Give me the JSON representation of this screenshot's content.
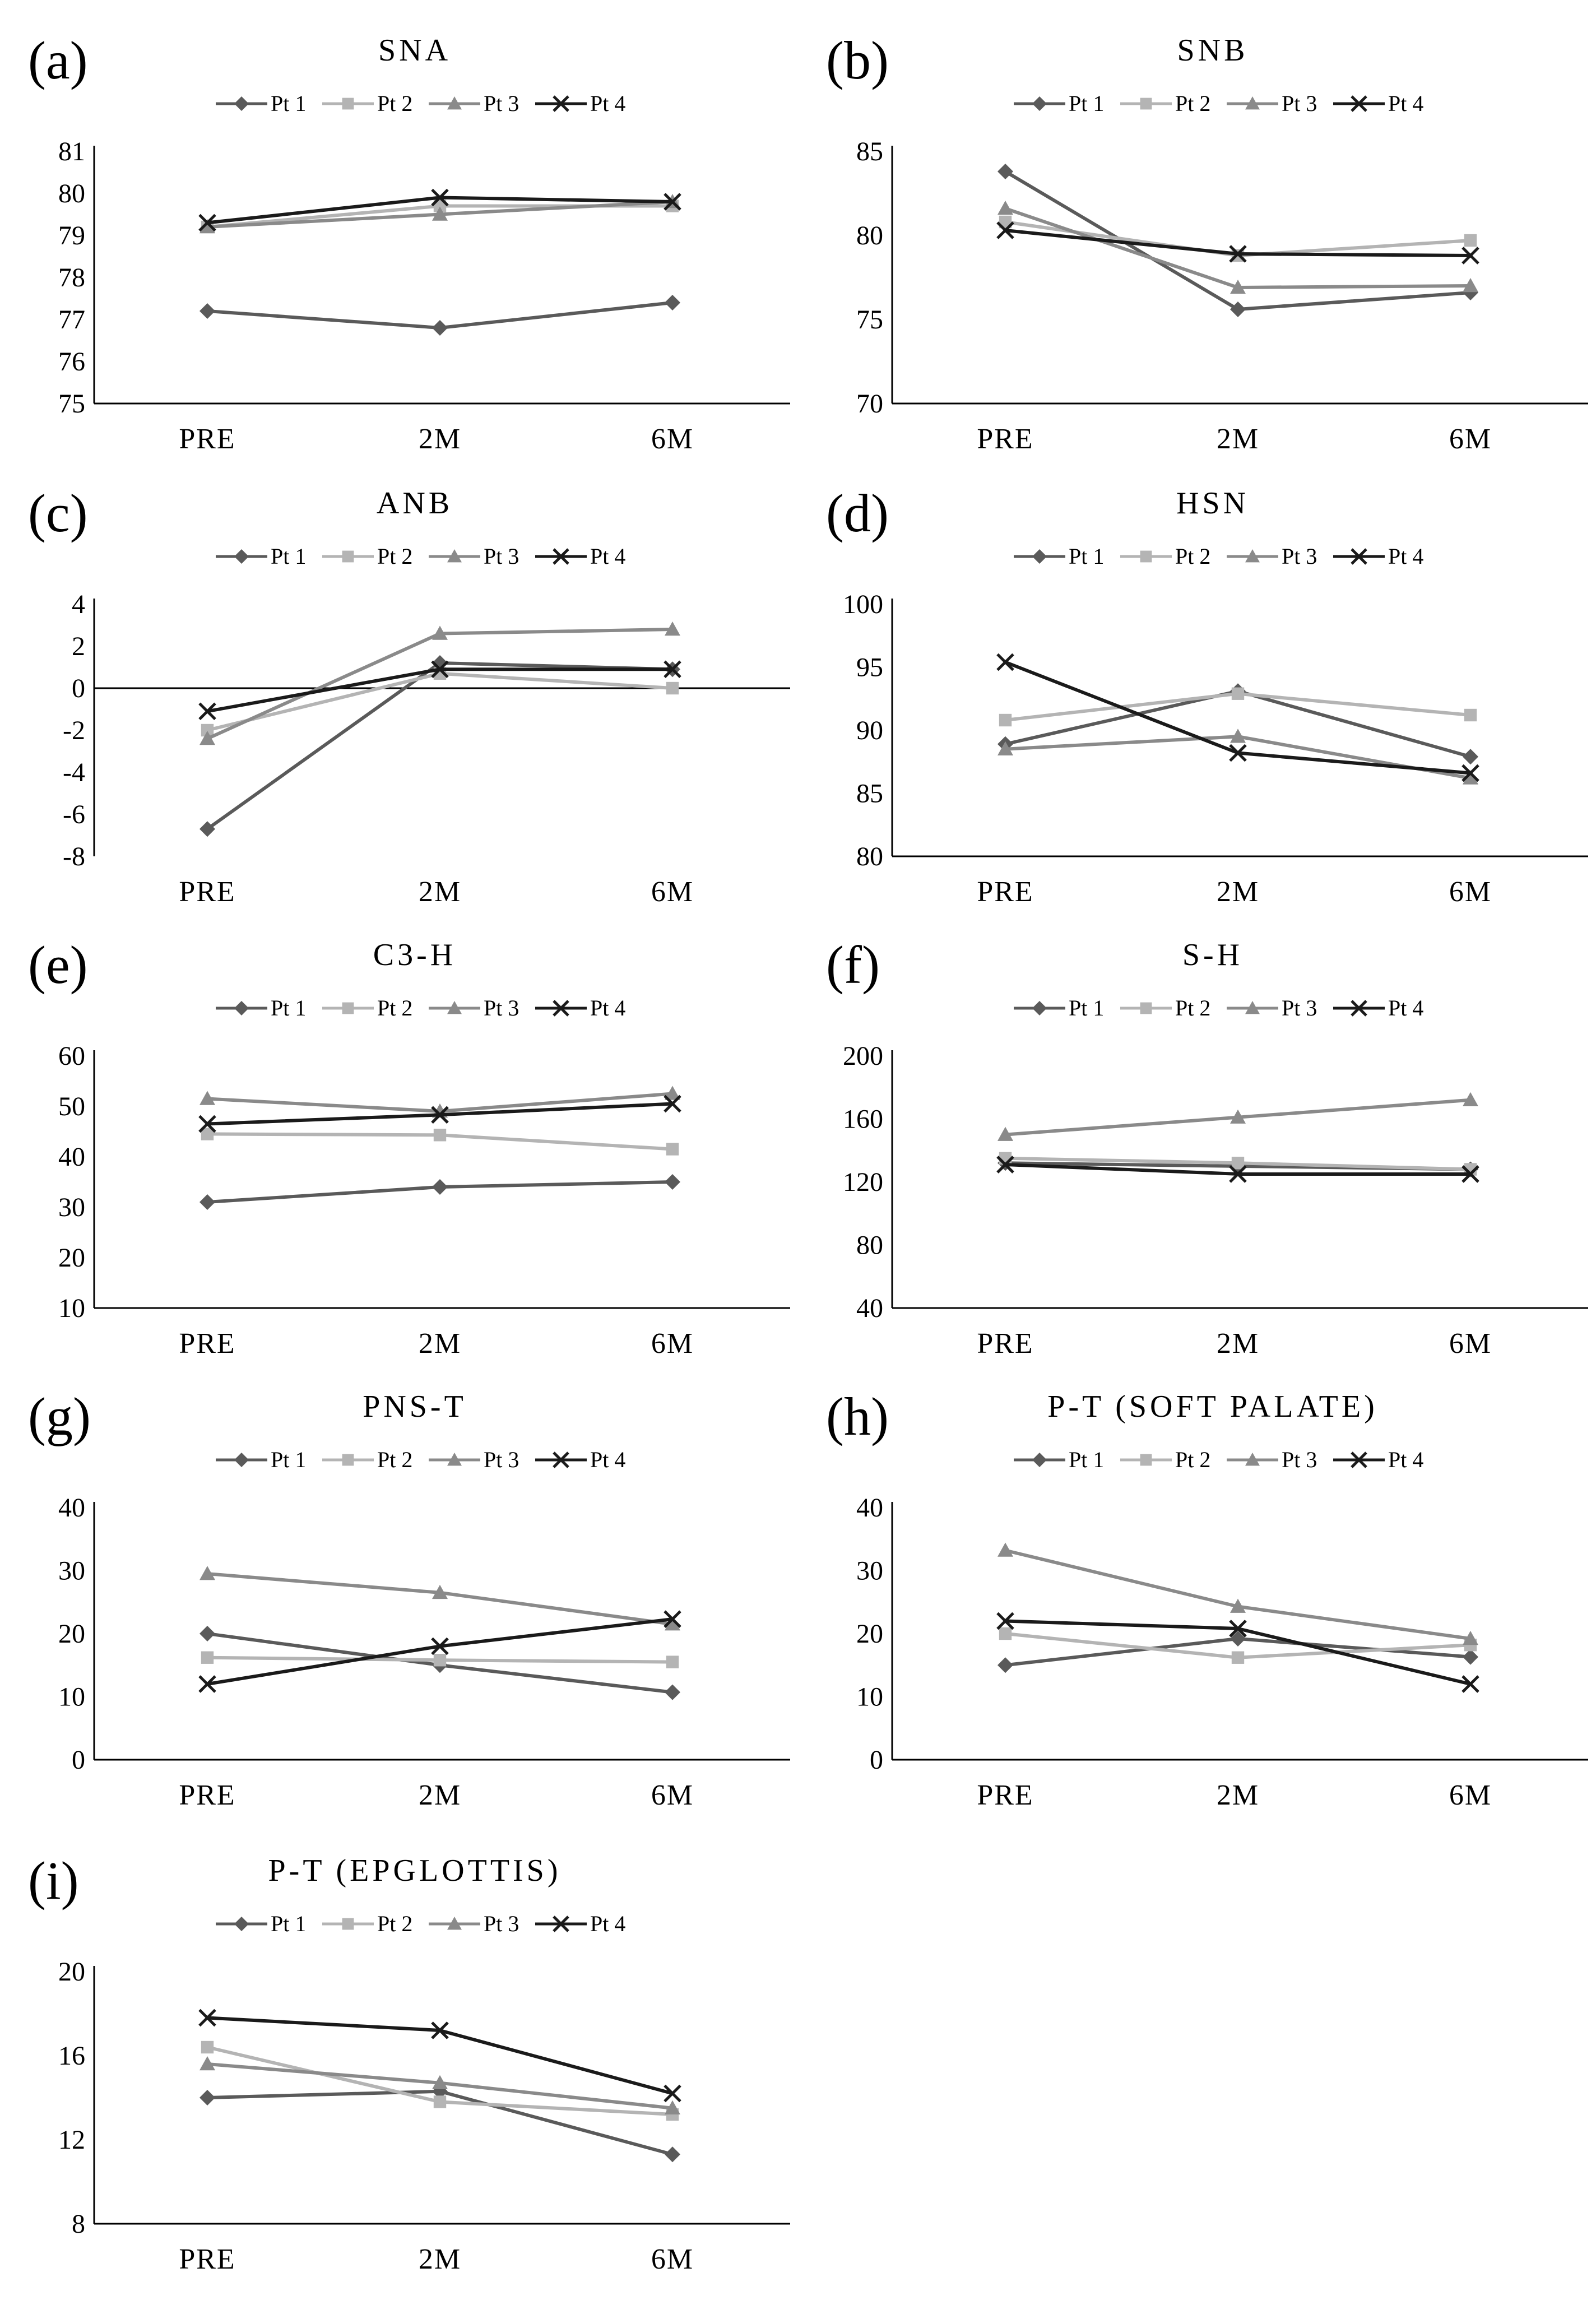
{
  "figure": {
    "legend_labels": [
      "Pt 1",
      "Pt 2",
      "Pt 3",
      "Pt 4"
    ],
    "series_colors": [
      "#5a5a5a",
      "#b4b4b4",
      "#8a8a8a",
      "#1a1a1a"
    ],
    "series_markers": [
      "diamond",
      "square",
      "triangle",
      "cross"
    ]
  },
  "chart_data": [
    {
      "type": "line",
      "letter": "(a)",
      "title": "SNA",
      "categories": [
        "PRE",
        "2M",
        "6M"
      ],
      "yticks": [
        75,
        76,
        77,
        78,
        79,
        80,
        81
      ],
      "ylim": [
        75,
        81
      ],
      "zero_line": false,
      "series": [
        {
          "name": "Pt 1",
          "values": [
            77.2,
            76.8,
            77.4
          ]
        },
        {
          "name": "Pt 2",
          "values": [
            79.2,
            79.7,
            79.7
          ]
        },
        {
          "name": "Pt 3",
          "values": [
            79.2,
            79.5,
            79.8
          ]
        },
        {
          "name": "Pt 4",
          "values": [
            79.3,
            79.9,
            79.8
          ]
        }
      ]
    },
    {
      "type": "line",
      "letter": "(b)",
      "title": "SNB",
      "categories": [
        "PRE",
        "2M",
        "6M"
      ],
      "yticks": [
        70,
        75,
        80,
        85
      ],
      "ylim": [
        70,
        85
      ],
      "zero_line": false,
      "series": [
        {
          "name": "Pt 1",
          "values": [
            83.8,
            75.6,
            76.6
          ]
        },
        {
          "name": "Pt 2",
          "values": [
            80.8,
            78.8,
            79.7
          ]
        },
        {
          "name": "Pt 3",
          "values": [
            81.6,
            76.9,
            77.0
          ]
        },
        {
          "name": "Pt 4",
          "values": [
            80.3,
            78.9,
            78.8
          ]
        }
      ]
    },
    {
      "type": "line",
      "letter": "(c)",
      "title": "ANB",
      "categories": [
        "PRE",
        "2M",
        "6M"
      ],
      "yticks": [
        -8,
        -6,
        -4,
        -2,
        0,
        2,
        4
      ],
      "ylim": [
        -8,
        4
      ],
      "zero_line": true,
      "series": [
        {
          "name": "Pt 1",
          "values": [
            -6.7,
            1.2,
            0.9
          ]
        },
        {
          "name": "Pt 2",
          "values": [
            -2.0,
            0.7,
            0.0
          ]
        },
        {
          "name": "Pt 3",
          "values": [
            -2.4,
            2.6,
            2.8
          ]
        },
        {
          "name": "Pt 4",
          "values": [
            -1.1,
            0.9,
            0.9
          ]
        }
      ]
    },
    {
      "type": "line",
      "letter": "(d)",
      "title": "HSN",
      "categories": [
        "PRE",
        "2M",
        "6M"
      ],
      "yticks": [
        80,
        85,
        90,
        95,
        100
      ],
      "ylim": [
        80,
        100
      ],
      "zero_line": false,
      "series": [
        {
          "name": "Pt 1",
          "values": [
            88.9,
            93.1,
            87.9
          ]
        },
        {
          "name": "Pt 2",
          "values": [
            90.8,
            92.9,
            91.2
          ]
        },
        {
          "name": "Pt 3",
          "values": [
            88.5,
            89.5,
            86.2
          ]
        },
        {
          "name": "Pt 4",
          "values": [
            95.4,
            88.2,
            86.6
          ]
        }
      ]
    },
    {
      "type": "line",
      "letter": "(e)",
      "title": "C3-H",
      "categories": [
        "PRE",
        "2M",
        "6M"
      ],
      "yticks": [
        10,
        20,
        30,
        40,
        50,
        60
      ],
      "ylim": [
        10,
        60
      ],
      "zero_line": false,
      "series": [
        {
          "name": "Pt 1",
          "values": [
            31,
            34,
            35
          ]
        },
        {
          "name": "Pt 2",
          "values": [
            44.5,
            44.3,
            41.5
          ]
        },
        {
          "name": "Pt 3",
          "values": [
            51.5,
            49,
            52.5
          ]
        },
        {
          "name": "Pt 4",
          "values": [
            46.5,
            48.3,
            50.5
          ]
        }
      ]
    },
    {
      "type": "line",
      "letter": "(f)",
      "title": "S-H",
      "categories": [
        "PRE",
        "2M",
        "6M"
      ],
      "yticks": [
        40,
        80,
        120,
        160,
        200
      ],
      "ylim": [
        40,
        200
      ],
      "zero_line": false,
      "series": [
        {
          "name": "Pt 1",
          "values": [
            132,
            130,
            128
          ]
        },
        {
          "name": "Pt 2",
          "values": [
            135,
            132,
            128
          ]
        },
        {
          "name": "Pt 3",
          "values": [
            150,
            161,
            172
          ]
        },
        {
          "name": "Pt 4",
          "values": [
            131,
            125,
            125
          ]
        }
      ]
    },
    {
      "type": "line",
      "letter": "(g)",
      "title": "PNS-T",
      "categories": [
        "PRE",
        "2M",
        "6M"
      ],
      "yticks": [
        0,
        10,
        20,
        30,
        40
      ],
      "ylim": [
        0,
        40
      ],
      "zero_line": false,
      "series": [
        {
          "name": "Pt 1",
          "values": [
            20,
            15,
            10.7
          ]
        },
        {
          "name": "Pt 2",
          "values": [
            16.2,
            15.8,
            15.5
          ]
        },
        {
          "name": "Pt 3",
          "values": [
            29.5,
            26.5,
            21.5
          ]
        },
        {
          "name": "Pt 4",
          "values": [
            12,
            18,
            22.3
          ]
        }
      ]
    },
    {
      "type": "line",
      "letter": "(h)",
      "title": "P-T (SOFT PALATE)",
      "categories": [
        "PRE",
        "2M",
        "6M"
      ],
      "yticks": [
        0,
        10,
        20,
        30,
        40
      ],
      "ylim": [
        0,
        40
      ],
      "zero_line": false,
      "series": [
        {
          "name": "Pt 1",
          "values": [
            15,
            19.2,
            16.3
          ]
        },
        {
          "name": "Pt 2",
          "values": [
            20,
            16.2,
            18.2
          ]
        },
        {
          "name": "Pt 3",
          "values": [
            33.2,
            24.3,
            19.2
          ]
        },
        {
          "name": "Pt 4",
          "values": [
            22,
            20.8,
            12
          ]
        }
      ]
    },
    {
      "type": "line",
      "letter": "(i)",
      "title": "P-T (EPGLOTTIS)",
      "categories": [
        "PRE",
        "2M",
        "6M"
      ],
      "yticks": [
        8,
        12,
        16,
        20
      ],
      "ylim": [
        8,
        20
      ],
      "zero_line": false,
      "series": [
        {
          "name": "Pt 1",
          "values": [
            14.0,
            14.3,
            11.3
          ]
        },
        {
          "name": "Pt 2",
          "values": [
            16.4,
            13.8,
            13.2
          ]
        },
        {
          "name": "Pt 3",
          "values": [
            15.6,
            14.7,
            13.5
          ]
        },
        {
          "name": "Pt 4",
          "values": [
            17.8,
            17.2,
            14.2
          ]
        }
      ]
    }
  ]
}
